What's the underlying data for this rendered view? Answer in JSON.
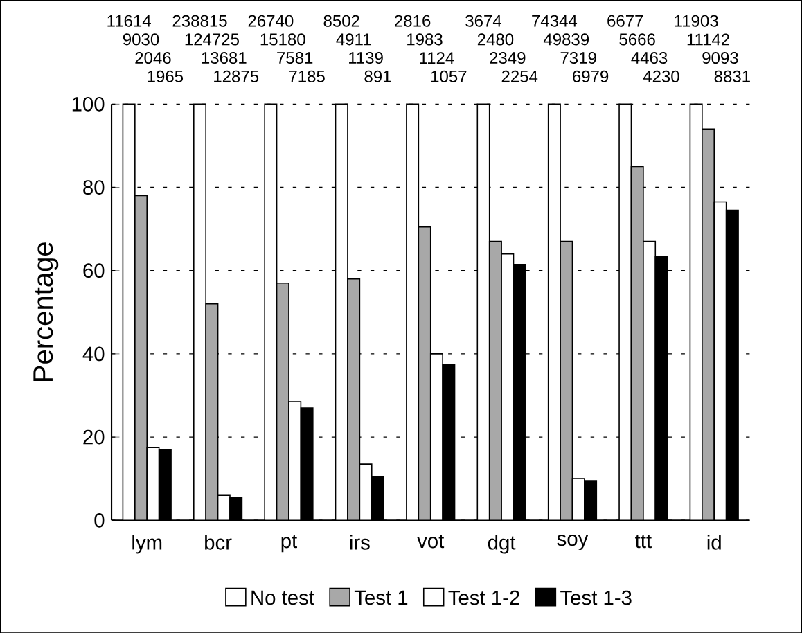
{
  "chart_data": {
    "type": "bar",
    "ylabel": "Percentage",
    "categories": [
      "lym",
      "bcr",
      "pt",
      "irs",
      "vot",
      "dgt",
      "soy",
      "ttt",
      "id"
    ],
    "ylim": [
      0,
      100
    ],
    "yticks": [
      0,
      20,
      40,
      60,
      80,
      100
    ],
    "grid": "y",
    "legend": "bottom",
    "annotations": [
      "11614",
      "238815",
      "26740",
      "8502",
      "2816",
      "3674",
      "74344",
      "6677",
      "11903",
      "9030",
      "124725",
      "15180",
      "4911",
      "1983",
      "2480",
      "49839",
      "5666",
      "11142",
      "2046",
      "13681",
      "7581",
      "1139",
      "1124",
      "2349",
      "7319",
      "4463",
      "9093",
      "1965",
      "12875",
      "7185",
      "891",
      "1057",
      "2254",
      "6979",
      "4230",
      "8831"
    ],
    "series": [
      {
        "name": "No test",
        "color": "#ffffff",
        "values": [
          100,
          100,
          100,
          100,
          100,
          100,
          100,
          100,
          100
        ]
      },
      {
        "name": "Test 1",
        "color": "#a8a8a8",
        "values": [
          78,
          52,
          57,
          58,
          70.5,
          67,
          67,
          85,
          94
        ]
      },
      {
        "name": "Test 1-2",
        "color": "#ffffff",
        "values": [
          17.5,
          6,
          28.5,
          13.5,
          40,
          64,
          10,
          67,
          76.5
        ]
      },
      {
        "name": "Test 1-3",
        "color": "#000000",
        "values": [
          17,
          5.5,
          27,
          10.5,
          37.5,
          61.5,
          9.5,
          63.5,
          74.5
        ]
      }
    ]
  }
}
